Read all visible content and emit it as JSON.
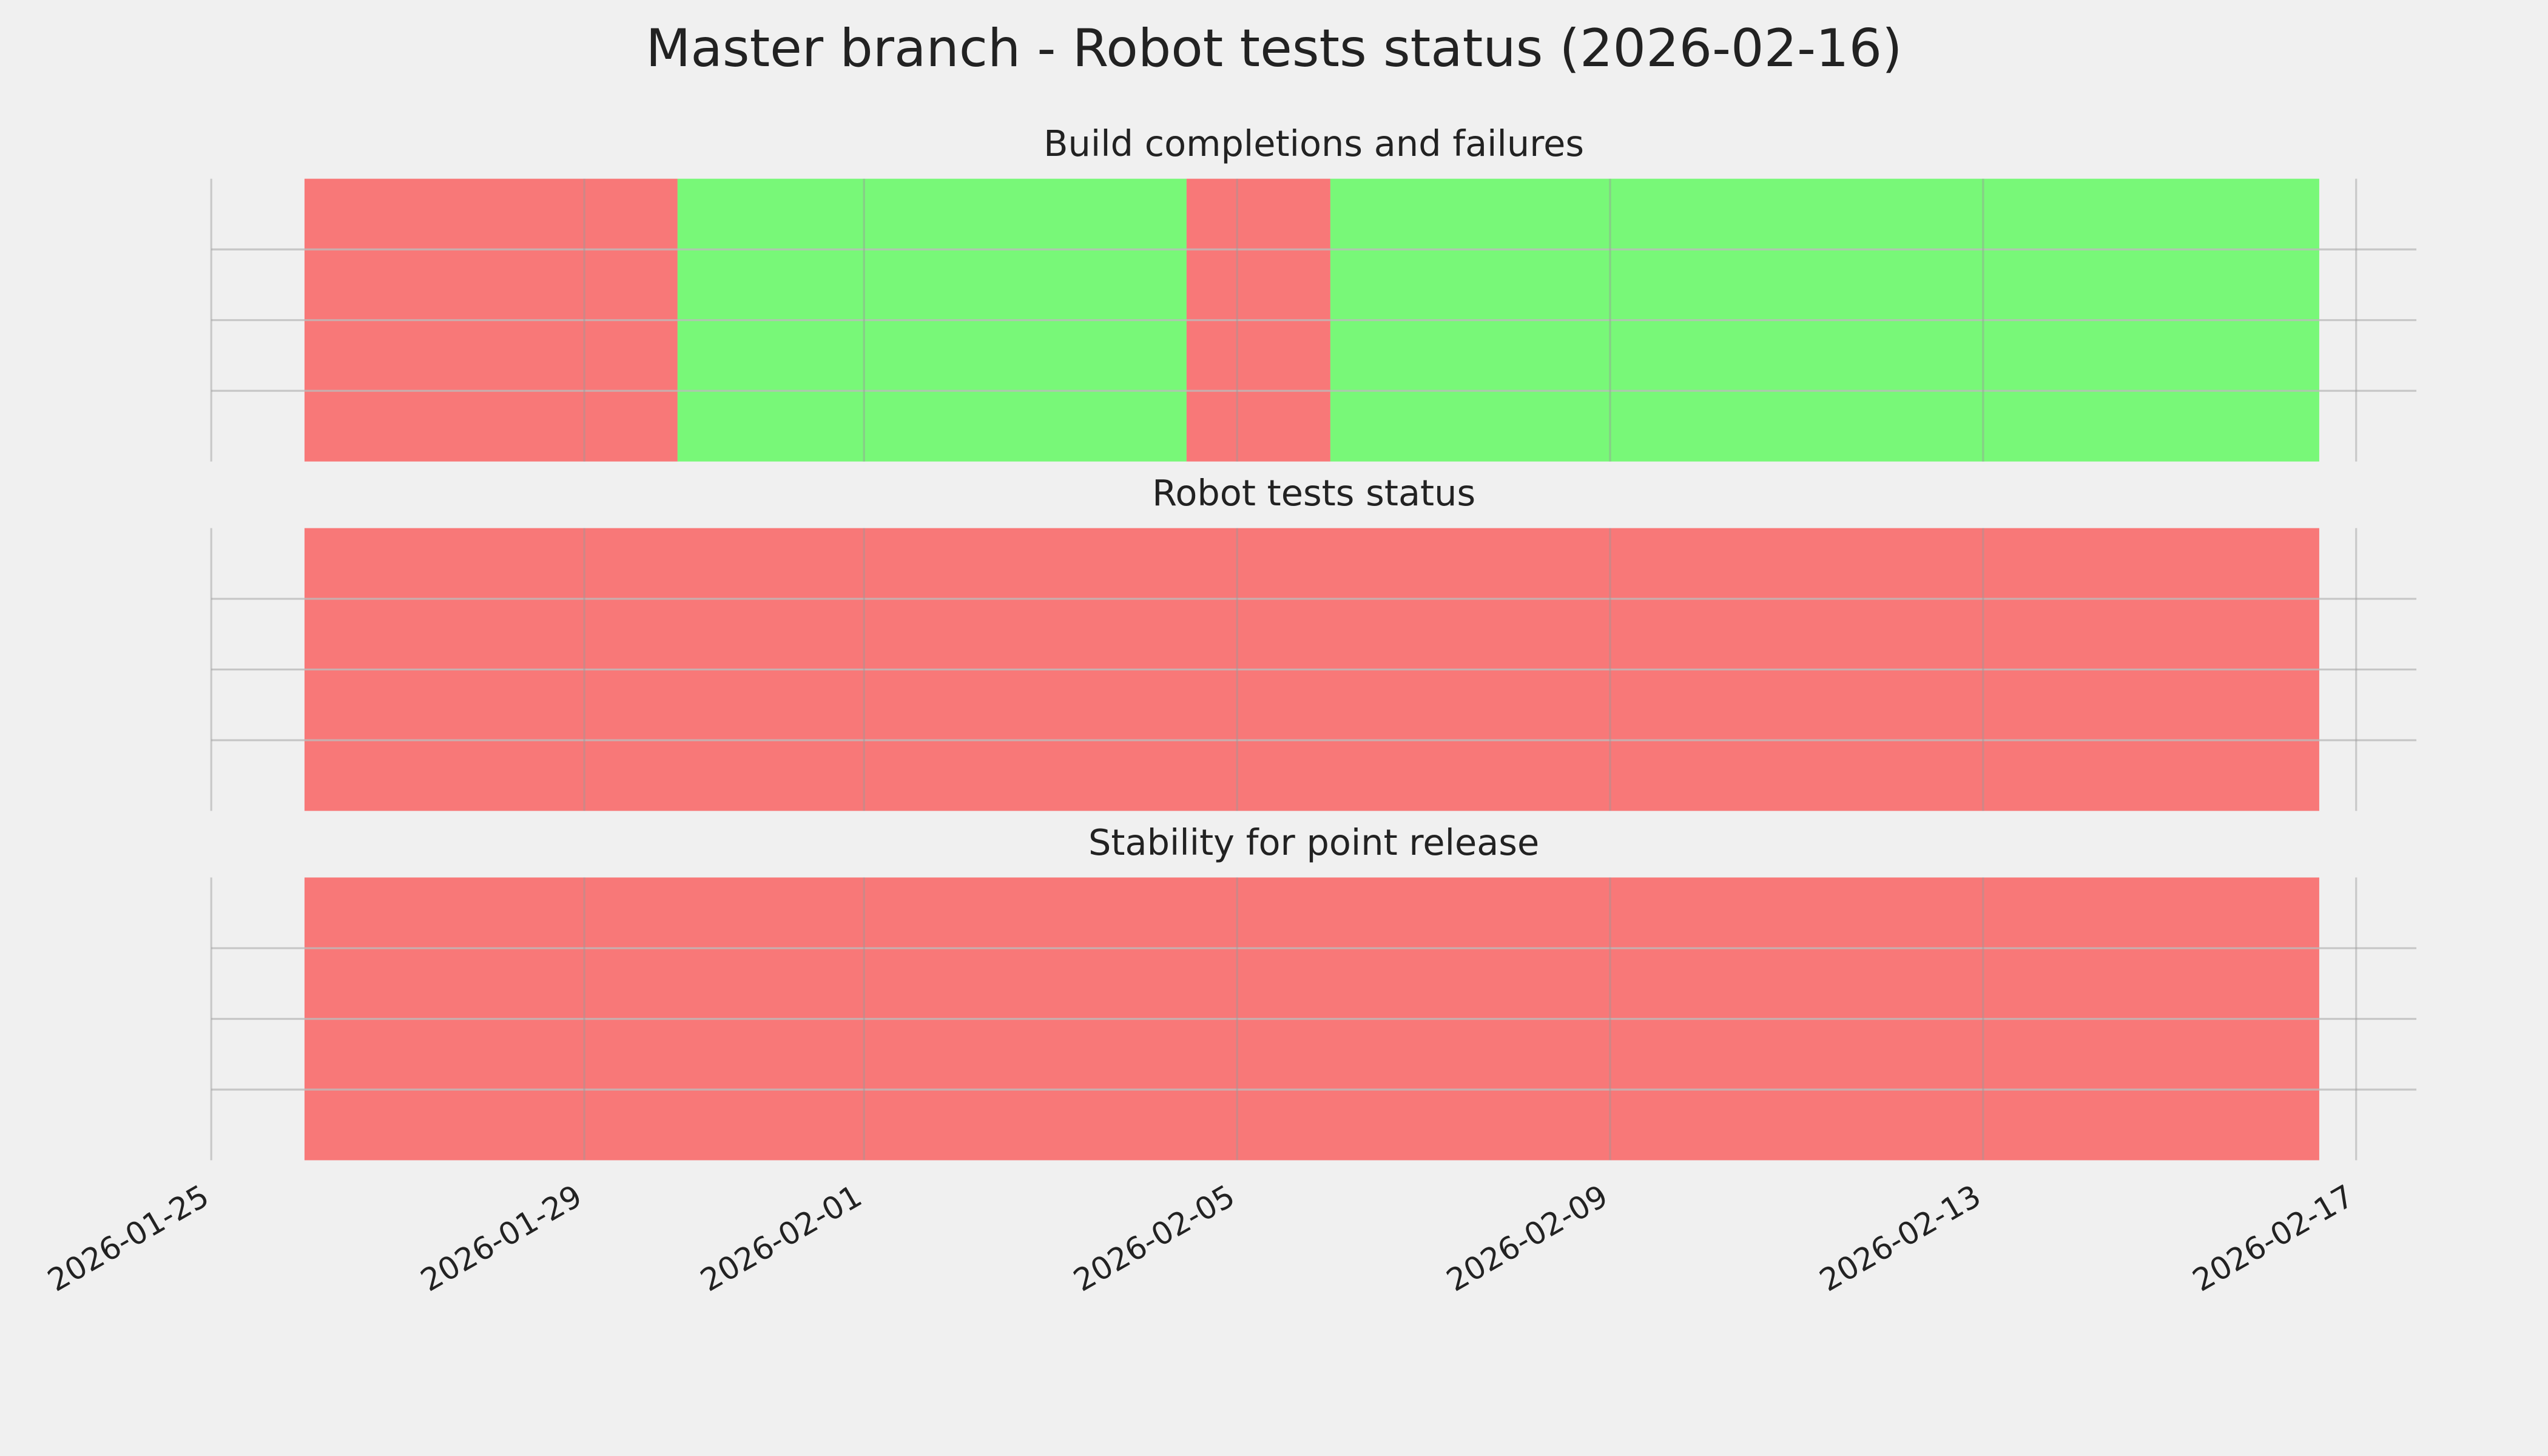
{
  "title": "Master branch - Robot tests status (2026-02-16)",
  "chart_data": [
    {
      "type": "span",
      "title": "Build completions and failures",
      "alpha": 0.5,
      "spans": [
        {
          "start": "2026-01-26",
          "end": "2026-01-30",
          "color": "#ff0000"
        },
        {
          "start": "2026-01-30",
          "end": "2026-02-04T11:00",
          "color": "#00ff00"
        },
        {
          "start": "2026-02-04T11:00",
          "end": "2026-02-06",
          "color": "#ff0000"
        },
        {
          "start": "2026-02-06",
          "end": "2026-02-16T14:30",
          "color": "#00ff00"
        }
      ]
    },
    {
      "type": "span",
      "title": "Robot tests status",
      "alpha": 0.5,
      "spans": [
        {
          "start": "2026-01-26",
          "end": "2026-02-16T14:30",
          "color": "#ff0000"
        }
      ]
    },
    {
      "type": "span",
      "title": "Stability for point release",
      "alpha": 0.5,
      "spans": [
        {
          "start": "2026-01-26",
          "end": "2026-02-16T14:30",
          "color": "#ff0000"
        }
      ],
      "xlim": [
        "2026-01-25",
        "2026-02-17T15:30"
      ],
      "xticks": [
        "2026-01-25",
        "2026-01-29",
        "2026-02-01",
        "2026-02-05",
        "2026-02-09",
        "2026-02-13",
        "2026-02-17"
      ],
      "grid": true
    }
  ]
}
